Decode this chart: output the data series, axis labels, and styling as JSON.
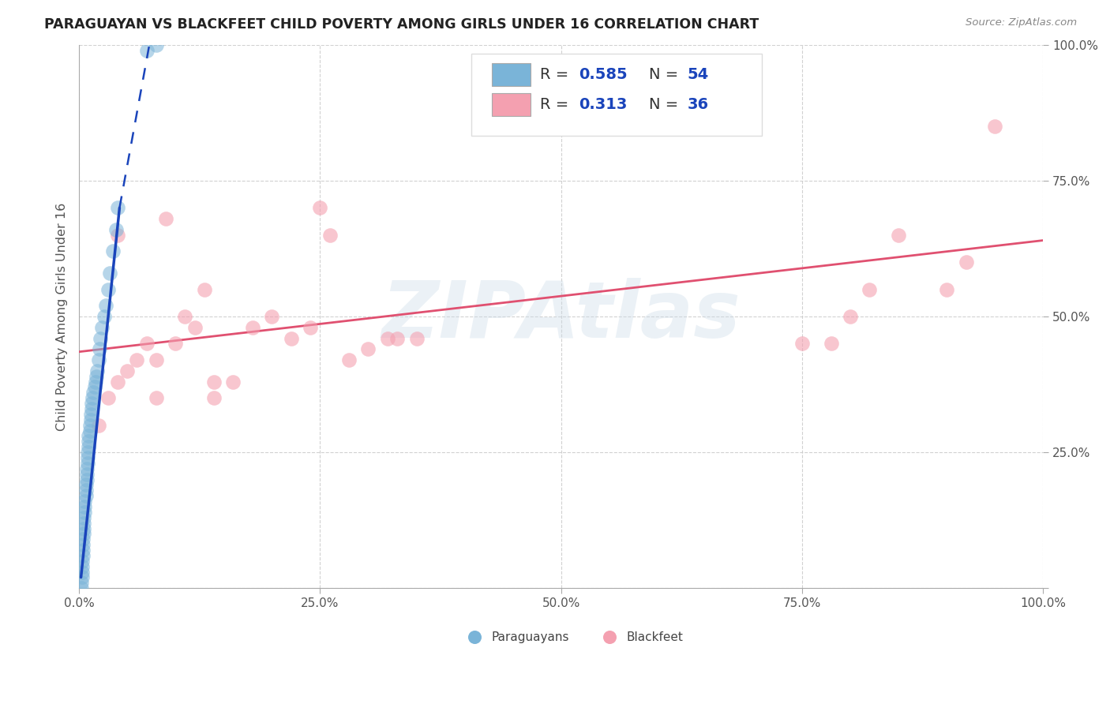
{
  "title": "PARAGUAYAN VS BLACKFEET CHILD POVERTY AMONG GIRLS UNDER 16 CORRELATION CHART",
  "source": "Source: ZipAtlas.com",
  "ylabel": "Child Poverty Among Girls Under 16",
  "xlim": [
    0,
    1.0
  ],
  "ylim": [
    0,
    1.0
  ],
  "xtick_labels": [
    "0.0%",
    "25.0%",
    "50.0%",
    "75.0%",
    "100.0%"
  ],
  "xtick_vals": [
    0.0,
    0.25,
    0.5,
    0.75,
    1.0
  ],
  "ytick_labels": [
    "",
    "25.0%",
    "50.0%",
    "75.0%",
    "100.0%"
  ],
  "ytick_vals": [
    0.0,
    0.25,
    0.5,
    0.75,
    1.0
  ],
  "watermark_text": "ZIPAtlas",
  "legend_labels": [
    "Paraguayans",
    "Blackfeet"
  ],
  "blue_R": "0.585",
  "blue_N": "54",
  "pink_R": "0.313",
  "pink_N": "36",
  "blue_color": "#7ab4d8",
  "pink_color": "#f4a0b0",
  "blue_line_color": "#1a44bb",
  "pink_line_color": "#e05070",
  "legend_text_color": "#1a44bb",
  "blue_points": [
    [
      0.002,
      0.0
    ],
    [
      0.002,
      0.01
    ],
    [
      0.003,
      0.02
    ],
    [
      0.003,
      0.03
    ],
    [
      0.003,
      0.04
    ],
    [
      0.003,
      0.05
    ],
    [
      0.004,
      0.06
    ],
    [
      0.004,
      0.07
    ],
    [
      0.004,
      0.08
    ],
    [
      0.004,
      0.09
    ],
    [
      0.005,
      0.1
    ],
    [
      0.005,
      0.11
    ],
    [
      0.005,
      0.12
    ],
    [
      0.005,
      0.13
    ],
    [
      0.006,
      0.14
    ],
    [
      0.006,
      0.15
    ],
    [
      0.006,
      0.16
    ],
    [
      0.007,
      0.17
    ],
    [
      0.007,
      0.18
    ],
    [
      0.007,
      0.19
    ],
    [
      0.008,
      0.2
    ],
    [
      0.008,
      0.21
    ],
    [
      0.008,
      0.22
    ],
    [
      0.009,
      0.23
    ],
    [
      0.009,
      0.24
    ],
    [
      0.009,
      0.25
    ],
    [
      0.01,
      0.26
    ],
    [
      0.01,
      0.27
    ],
    [
      0.01,
      0.28
    ],
    [
      0.011,
      0.29
    ],
    [
      0.011,
      0.3
    ],
    [
      0.012,
      0.31
    ],
    [
      0.012,
      0.32
    ],
    [
      0.013,
      0.33
    ],
    [
      0.013,
      0.34
    ],
    [
      0.014,
      0.35
    ],
    [
      0.015,
      0.36
    ],
    [
      0.016,
      0.37
    ],
    [
      0.017,
      0.38
    ],
    [
      0.018,
      0.39
    ],
    [
      0.019,
      0.4
    ],
    [
      0.02,
      0.42
    ],
    [
      0.021,
      0.44
    ],
    [
      0.022,
      0.46
    ],
    [
      0.024,
      0.48
    ],
    [
      0.026,
      0.5
    ],
    [
      0.028,
      0.52
    ],
    [
      0.03,
      0.55
    ],
    [
      0.032,
      0.58
    ],
    [
      0.035,
      0.62
    ],
    [
      0.038,
      0.66
    ],
    [
      0.04,
      0.7
    ],
    [
      0.07,
      0.99
    ],
    [
      0.08,
      1.0
    ]
  ],
  "pink_points": [
    [
      0.02,
      0.3
    ],
    [
      0.03,
      0.35
    ],
    [
      0.04,
      0.38
    ],
    [
      0.04,
      0.65
    ],
    [
      0.05,
      0.4
    ],
    [
      0.06,
      0.42
    ],
    [
      0.07,
      0.45
    ],
    [
      0.08,
      0.35
    ],
    [
      0.08,
      0.42
    ],
    [
      0.09,
      0.68
    ],
    [
      0.1,
      0.45
    ],
    [
      0.11,
      0.5
    ],
    [
      0.12,
      0.48
    ],
    [
      0.13,
      0.55
    ],
    [
      0.14,
      0.35
    ],
    [
      0.14,
      0.38
    ],
    [
      0.16,
      0.38
    ],
    [
      0.18,
      0.48
    ],
    [
      0.2,
      0.5
    ],
    [
      0.22,
      0.46
    ],
    [
      0.24,
      0.48
    ],
    [
      0.25,
      0.7
    ],
    [
      0.26,
      0.65
    ],
    [
      0.28,
      0.42
    ],
    [
      0.3,
      0.44
    ],
    [
      0.32,
      0.46
    ],
    [
      0.33,
      0.46
    ],
    [
      0.35,
      0.46
    ],
    [
      0.75,
      0.45
    ],
    [
      0.78,
      0.45
    ],
    [
      0.8,
      0.5
    ],
    [
      0.82,
      0.55
    ],
    [
      0.85,
      0.65
    ],
    [
      0.9,
      0.55
    ],
    [
      0.92,
      0.6
    ],
    [
      0.95,
      0.85
    ]
  ],
  "blue_line_solid": [
    [
      0.002,
      0.02
    ],
    [
      0.042,
      0.7
    ]
  ],
  "blue_line_dashed": [
    [
      0.042,
      0.7
    ],
    [
      0.075,
      1.02
    ]
  ],
  "pink_line": [
    [
      0.0,
      0.435
    ],
    [
      1.0,
      0.64
    ]
  ],
  "background_color": "#ffffff",
  "grid_color": "#cccccc"
}
